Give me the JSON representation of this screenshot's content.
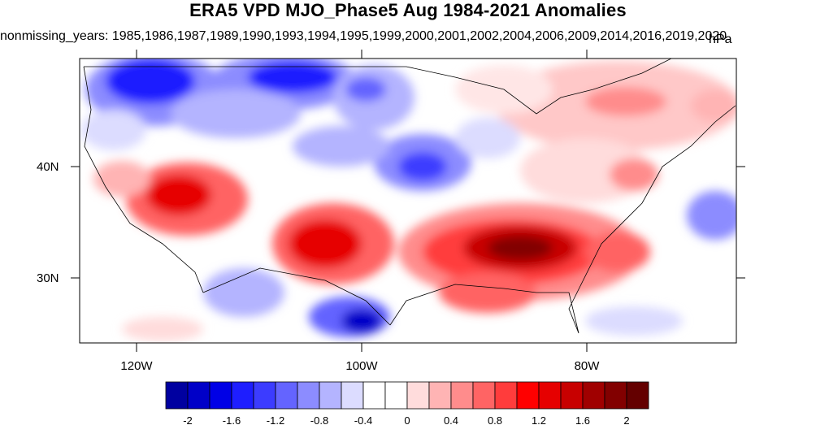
{
  "title": "ERA5 VPD MJO_Phase5 Aug 1984-2021 Anomalies",
  "subtitle": "nonmissing_years: 1985,1986,1987,1989,1990,1993,1994,1995,1999,2000,2001,2002,2004,2006,2009,2014,2016,2019,2020",
  "units": "hPa",
  "axes": {
    "lat_labels": [
      "40N",
      "30N"
    ],
    "lon_labels": [
      "120W",
      "100W",
      "80W"
    ]
  },
  "colorbar": {
    "labels": [
      "-2",
      "-1.6",
      "-1.2",
      "-0.8",
      "-0.4",
      "0",
      "0.4",
      "0.8",
      "1.2",
      "1.6",
      "2"
    ],
    "colors": [
      "#0000a0",
      "#0000c8",
      "#0000e6",
      "#1e1eff",
      "#3c3cff",
      "#6464ff",
      "#8c8cff",
      "#b4b4ff",
      "#dcdcff",
      "#ffffff",
      "#ffffff",
      "#ffdcdc",
      "#ffb4b4",
      "#ff8c8c",
      "#ff6464",
      "#ff3c3c",
      "#ff0000",
      "#e60000",
      "#c80000",
      "#a00000",
      "#820000",
      "#640000"
    ]
  },
  "map": {
    "region": "Contiguous United States",
    "features": [
      {
        "label": "Northern Rockies / Plains",
        "sign": "negative"
      },
      {
        "label": "Southern Texas",
        "sign": "negative"
      },
      {
        "label": "Iowa / Missouri",
        "sign": "negative"
      },
      {
        "label": "Southwest",
        "sign": "positive"
      },
      {
        "label": "Southern Plains / New Mexico",
        "sign": "positive"
      },
      {
        "label": "Southeast / Gulf Coast",
        "sign": "positive"
      },
      {
        "label": "Northeast",
        "sign": "positive"
      }
    ]
  }
}
